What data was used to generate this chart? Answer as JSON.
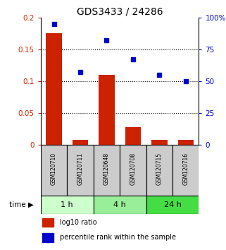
{
  "title": "GDS3433 / 24286",
  "categories": [
    "GSM120710",
    "GSM120711",
    "GSM120648",
    "GSM120708",
    "GSM120715",
    "GSM120716"
  ],
  "log10_ratio": [
    0.175,
    0.008,
    0.11,
    0.028,
    0.008,
    0.008
  ],
  "percentile_rank": [
    95,
    57,
    82,
    67,
    55,
    50
  ],
  "bar_color": "#cc2200",
  "dot_color": "#0000cc",
  "ylim_left": [
    0,
    0.2
  ],
  "ylim_right": [
    0,
    100
  ],
  "yticks_left": [
    0,
    0.05,
    0.1,
    0.15,
    0.2
  ],
  "ytick_labels_left": [
    "0",
    "0.05",
    "0.1",
    "0.15",
    "0.2"
  ],
  "yticks_right": [
    0,
    25,
    50,
    75,
    100
  ],
  "ytick_labels_right": [
    "0",
    "25",
    "50",
    "75",
    "100%"
  ],
  "time_groups": [
    {
      "label": "1 h",
      "start": 0,
      "end": 2,
      "color": "#ccffcc"
    },
    {
      "label": "4 h",
      "start": 2,
      "end": 4,
      "color": "#99ee99"
    },
    {
      "label": "24 h",
      "start": 4,
      "end": 6,
      "color": "#44dd44"
    }
  ],
  "legend_bar_label": "log10 ratio",
  "legend_dot_label": "percentile rank within the sample",
  "bar_width": 0.6,
  "bg_color": "#ffffff",
  "sample_box_color": "#cccccc"
}
